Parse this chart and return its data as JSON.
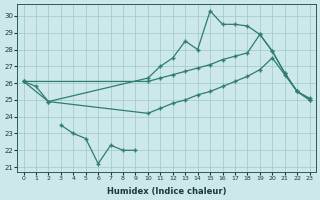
{
  "xlabel": "Humidex (Indice chaleur)",
  "color": "#2e7d6e",
  "bg_color": "#cce8e8",
  "grid_color": "#9dc8c8",
  "ylim_bottom": 20.7,
  "ylim_top": 30.7,
  "yticks": [
    21,
    22,
    23,
    24,
    25,
    26,
    27,
    28,
    29,
    30
  ],
  "xticks": [
    0,
    1,
    2,
    3,
    4,
    5,
    6,
    7,
    8,
    9,
    10,
    11,
    12,
    13,
    14,
    15,
    16,
    17,
    18,
    19,
    20,
    21,
    22,
    23
  ],
  "line_jagged_top": {
    "x": [
      0,
      1,
      2,
      10,
      11,
      12,
      13,
      14,
      15,
      16,
      17,
      18,
      19,
      20,
      21,
      22,
      23
    ],
    "y": [
      26.1,
      25.8,
      24.9,
      26.3,
      27.0,
      27.5,
      28.5,
      28.0,
      30.3,
      29.5,
      29.5,
      29.4,
      28.9,
      27.9,
      26.6,
      25.5,
      25.0
    ]
  },
  "line_upper_diag": {
    "x": [
      0,
      10,
      11,
      12,
      13,
      14,
      15,
      16,
      17,
      18,
      19,
      20,
      21,
      22,
      23
    ],
    "y": [
      26.1,
      26.1,
      26.3,
      26.5,
      26.7,
      26.9,
      27.1,
      27.4,
      27.6,
      27.8,
      28.9,
      27.9,
      26.6,
      25.5,
      25.0
    ]
  },
  "line_lower_diag": {
    "x": [
      0,
      2,
      10,
      11,
      12,
      13,
      14,
      15,
      16,
      17,
      18,
      19,
      20,
      21,
      22,
      23
    ],
    "y": [
      26.1,
      24.9,
      24.2,
      24.5,
      24.8,
      25.0,
      25.3,
      25.5,
      25.8,
      26.1,
      26.4,
      26.8,
      27.5,
      26.5,
      25.5,
      25.1
    ]
  },
  "line_low_jagged": {
    "x": [
      3,
      4,
      5,
      6,
      7,
      8,
      9
    ],
    "y": [
      23.5,
      23.0,
      22.7,
      21.2,
      22.3,
      22.0,
      22.0
    ]
  }
}
